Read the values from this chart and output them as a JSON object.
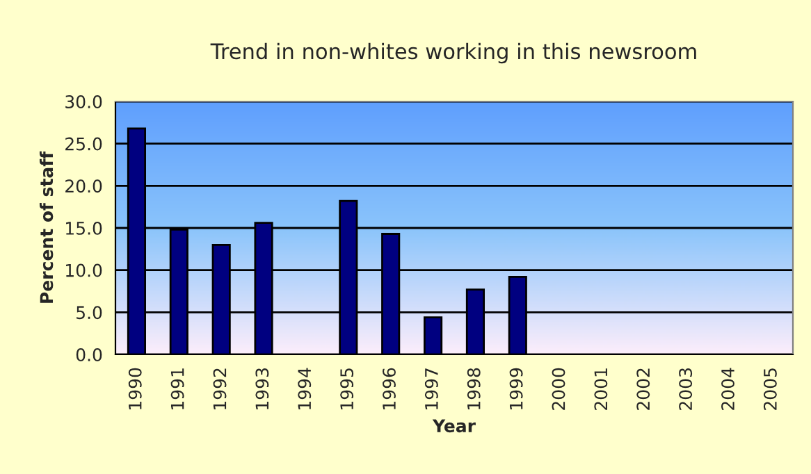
{
  "chart_data": {
    "type": "bar",
    "title": "Trend in non-whites working in this newsroom",
    "xlabel": "Year",
    "ylabel": "Percent of staff",
    "categories": [
      "1990",
      "1991",
      "1992",
      "1993",
      "1994",
      "1995",
      "1996",
      "1997",
      "1998",
      "1999",
      "2000",
      "2001",
      "2002",
      "2003",
      "2004",
      "2005"
    ],
    "values": [
      26.8,
      14.8,
      13.0,
      15.6,
      null,
      18.2,
      14.3,
      4.4,
      7.7,
      9.2,
      null,
      null,
      null,
      null,
      null,
      null
    ],
    "color": "#000080",
    "ylim": [
      0,
      30
    ],
    "yticks": [
      {
        "value": 0,
        "label": "0.0"
      },
      {
        "value": 5,
        "label": "5.0"
      },
      {
        "value": 10,
        "label": "10.0"
      },
      {
        "value": 15,
        "label": "15.0"
      },
      {
        "value": 20,
        "label": "20.0"
      },
      {
        "value": 25,
        "label": "25.0"
      },
      {
        "value": 30,
        "label": "30.0"
      }
    ],
    "grid": "y",
    "legend": false
  }
}
